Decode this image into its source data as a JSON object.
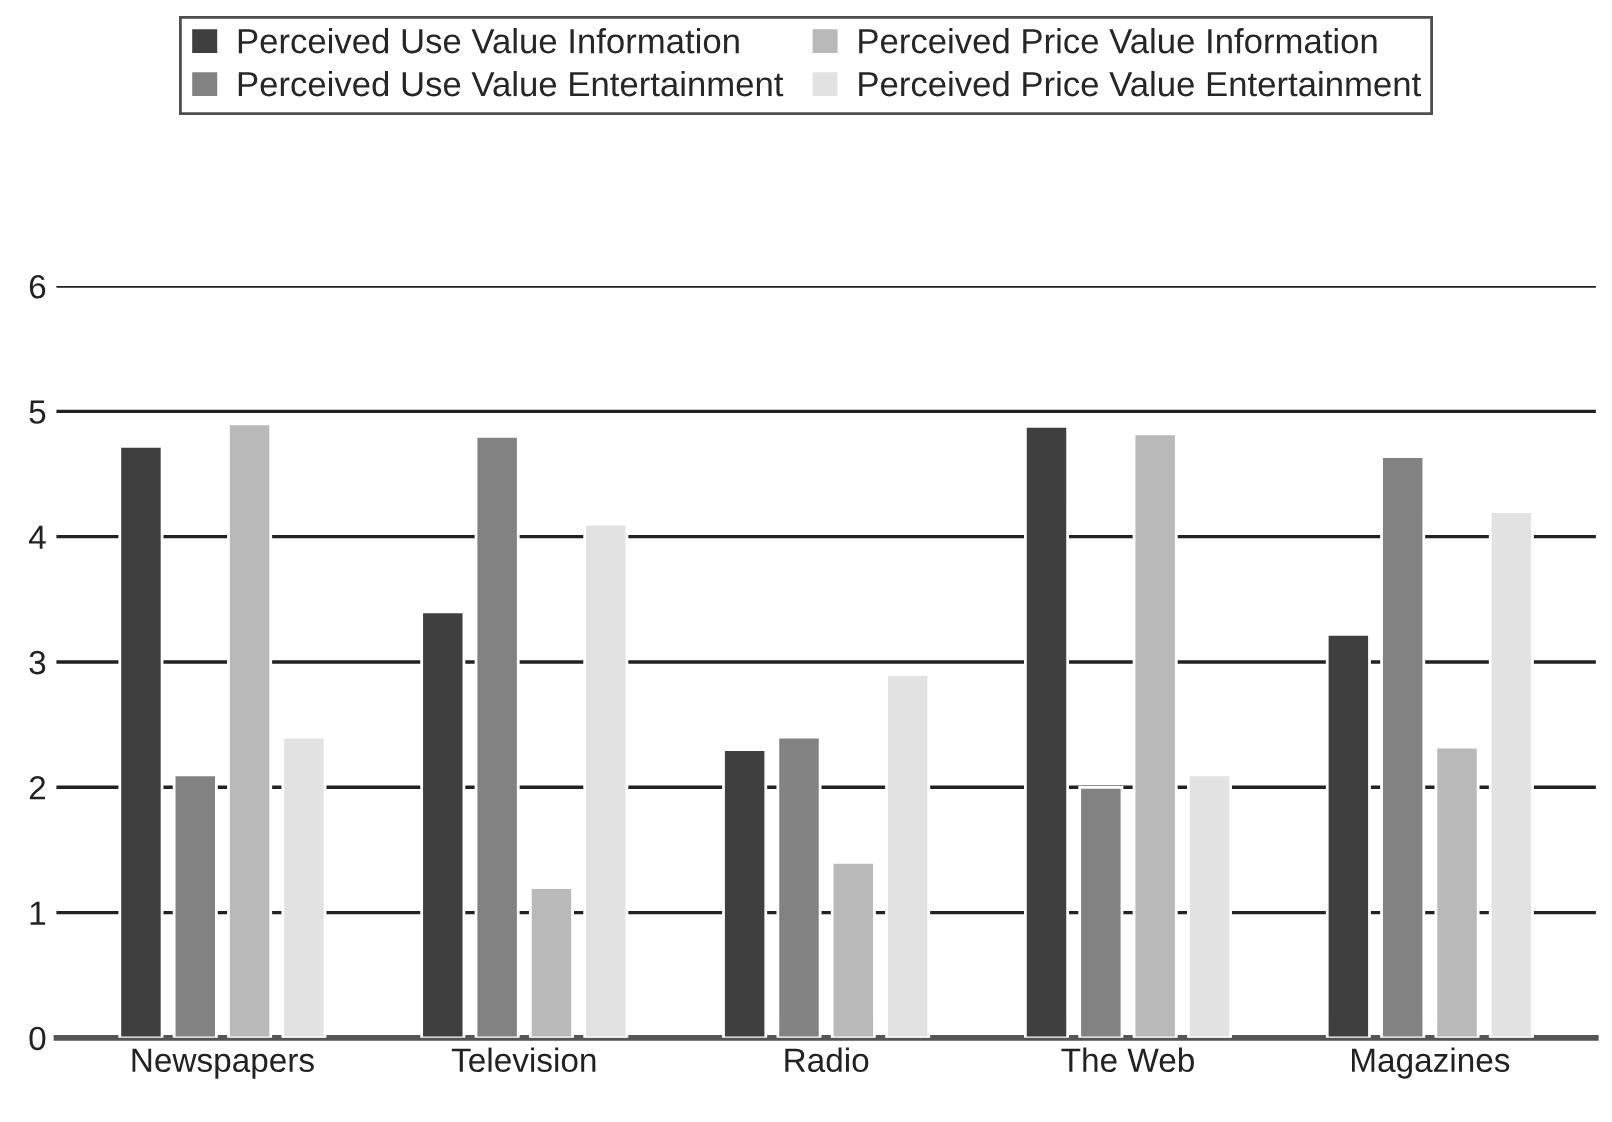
{
  "chart_data": {
    "type": "bar",
    "categories": [
      "Newspapers",
      "Television",
      "Radio",
      "The Web",
      "Magazines"
    ],
    "series": [
      {
        "name": "Perceived Use Value Information",
        "color": "#3f3f3f",
        "values": [
          4.72,
          3.4,
          2.3,
          4.88,
          3.22
        ]
      },
      {
        "name": "Perceived Use Value Entertainment",
        "color": "#828282",
        "values": [
          2.1,
          4.8,
          2.4,
          2.0,
          4.64
        ]
      },
      {
        "name": "Perceived Price Value Information",
        "color": "#b9b9b9",
        "values": [
          4.9,
          1.2,
          1.4,
          4.82,
          2.32
        ]
      },
      {
        "name": "Perceived Price Value Entertainment",
        "color": "#e2e2e2",
        "values": [
          2.4,
          4.1,
          2.9,
          2.1,
          4.2
        ]
      }
    ],
    "ylim": [
      0,
      6
    ],
    "yticks": [
      0,
      1,
      2,
      3,
      4,
      5,
      6
    ],
    "grid": "y",
    "legend": "top"
  }
}
